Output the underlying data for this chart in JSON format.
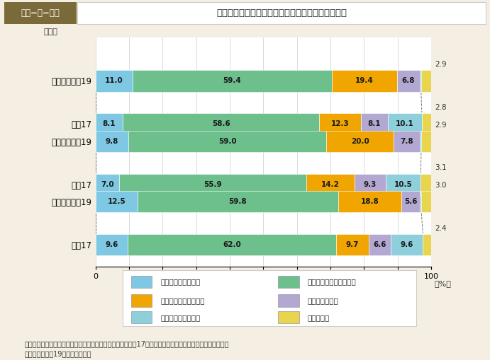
{
  "title_left": "第１−特−３図",
  "title_right": "地域が元気になるための活動に参加したいと思うか",
  "background_color": "#f5efe3",
  "plot_bg_color": "#ffffff",
  "rows": [
    {
      "label": "「総数」平成19",
      "values": [
        11.0,
        59.4,
        19.4,
        6.8,
        0.4,
        2.9
      ]
    },
    {
      "label": "平成17",
      "values": [
        8.1,
        58.6,
        12.3,
        8.1,
        10.1,
        2.8
      ]
    },
    {
      "label": "「女性」平成19",
      "values": [
        9.8,
        59.0,
        20.0,
        7.8,
        0.4,
        2.9
      ]
    },
    {
      "label": "平成17",
      "values": [
        7.0,
        55.9,
        14.2,
        9.3,
        10.5,
        3.1
      ]
    },
    {
      "label": "「男性」平成19",
      "values": [
        12.5,
        59.8,
        18.8,
        5.6,
        0.4,
        3.0
      ]
    },
    {
      "label": "平成17",
      "values": [
        9.6,
        62.0,
        9.7,
        6.6,
        9.6,
        2.4
      ]
    }
  ],
  "segment_colors": [
    "#7ec8e3",
    "#6dbf8b",
    "#f0a500",
    "#b3a8d1",
    "#8ecfdc",
    "#e8d44d"
  ],
  "legend_labels": [
    "積極的に参加したい",
    "機会があれば参加したい",
    "あまり参加したくない",
    "参加したくない",
    "どちらともいえない",
    "わからない"
  ],
  "note": "（備考）　内閣府「地域再生に関する特別世論調査」（平成17年）及び「地方再生に関する特別世論調査」\n　　　　（平成19年）より作成。",
  "xlim": [
    0,
    100
  ],
  "xticks": [
    0,
    10,
    20,
    30,
    40,
    50,
    60,
    70,
    80,
    90,
    100
  ],
  "group_y_offsets": [
    0,
    0,
    0.6,
    0,
    0.6,
    0
  ],
  "bar_height": 0.5
}
